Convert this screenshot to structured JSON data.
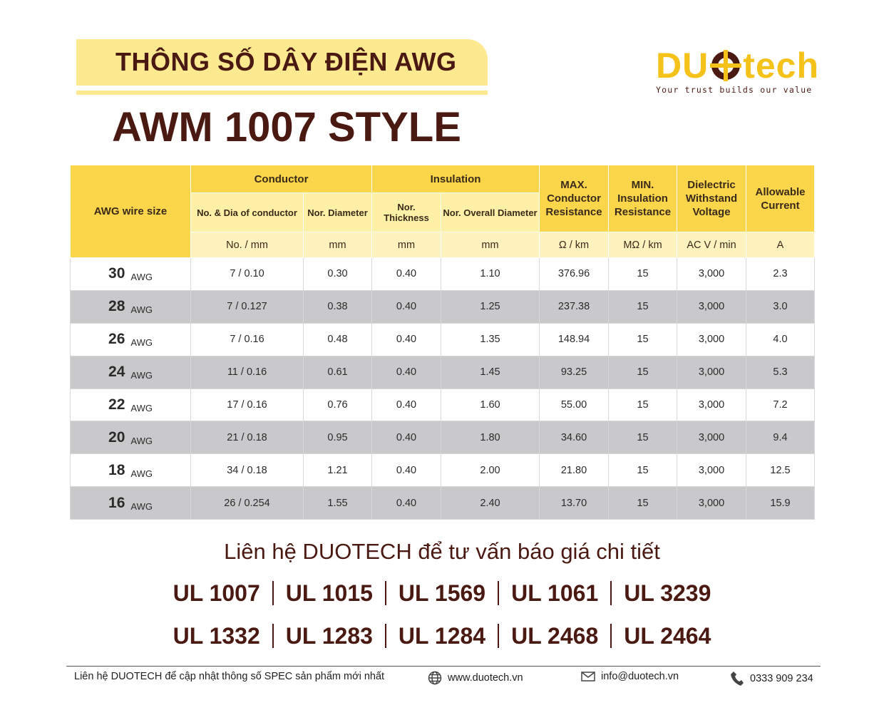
{
  "header": {
    "title": "THÔNG SỐ DÂY ĐIỆN AWG",
    "subtitle": "AWM 1007 STYLE"
  },
  "logo": {
    "brand_left": "DU",
    "brand_right": "tech",
    "tagline": "Your trust builds our value"
  },
  "table": {
    "corner": "AWG wire size",
    "groups": [
      "Conductor",
      "Insulation"
    ],
    "columns": [
      "No. & Dia of conductor",
      "Nor. Diameter",
      "Nor. Thickness",
      "Nor. Overall Diameter",
      "MAX. Conductor Resistance",
      "MIN. Insulation Resistance",
      "Dielectric Withstand Voltage",
      "Allowable Current"
    ],
    "units": [
      "No. / mm",
      "mm",
      "mm",
      "mm",
      "Ω / km",
      "MΩ / km",
      "AC V / min",
      "A"
    ],
    "rows": [
      {
        "size": "30",
        "unit": "AWG",
        "cells": [
          "7 / 0.10",
          "0.30",
          "0.40",
          "1.10",
          "376.96",
          "15",
          "3,000",
          "2.3"
        ]
      },
      {
        "size": "28",
        "unit": "AWG",
        "cells": [
          "7 / 0.127",
          "0.38",
          "0.40",
          "1.25",
          "237.38",
          "15",
          "3,000",
          "3.0"
        ]
      },
      {
        "size": "26",
        "unit": "AWG",
        "cells": [
          "7 / 0.16",
          "0.48",
          "0.40",
          "1.35",
          "148.94",
          "15",
          "3,000",
          "4.0"
        ]
      },
      {
        "size": "24",
        "unit": "AWG",
        "cells": [
          "11 / 0.16",
          "0.61",
          "0.40",
          "1.45",
          "93.25",
          "15",
          "3,000",
          "5.3"
        ]
      },
      {
        "size": "22",
        "unit": "AWG",
        "cells": [
          "17 / 0.16",
          "0.76",
          "0.40",
          "1.60",
          "55.00",
          "15",
          "3,000",
          "7.2"
        ]
      },
      {
        "size": "20",
        "unit": "AWG",
        "cells": [
          "21 / 0.18",
          "0.95",
          "0.40",
          "1.80",
          "34.60",
          "15",
          "3,000",
          "9.4"
        ]
      },
      {
        "size": "18",
        "unit": "AWG",
        "cells": [
          "34 / 0.18",
          "1.21",
          "0.40",
          "2.00",
          "21.80",
          "15",
          "3,000",
          "12.5"
        ]
      },
      {
        "size": "16",
        "unit": "AWG",
        "cells": [
          "26 / 0.254",
          "1.55",
          "0.40",
          "2.40",
          "13.70",
          "15",
          "3,000",
          "15.9"
        ]
      }
    ]
  },
  "contact": {
    "heading": "Liên hệ DUOTECH để tư vấn báo giá chi tiết",
    "codes": [
      [
        "UL 1007",
        "UL 1015",
        "UL 1569",
        "UL 1061",
        "UL 3239"
      ],
      [
        "UL 1332",
        "UL 1283",
        "UL 1284",
        "UL 2468",
        "UL 2464"
      ]
    ]
  },
  "footer": {
    "note": "Liên hệ DUOTECH để cập nhật thông số SPEC sản phẩm mới nhất",
    "website": "www.duotech.vn",
    "email": "info@duotech.vn",
    "phone": "0333 909 234"
  }
}
